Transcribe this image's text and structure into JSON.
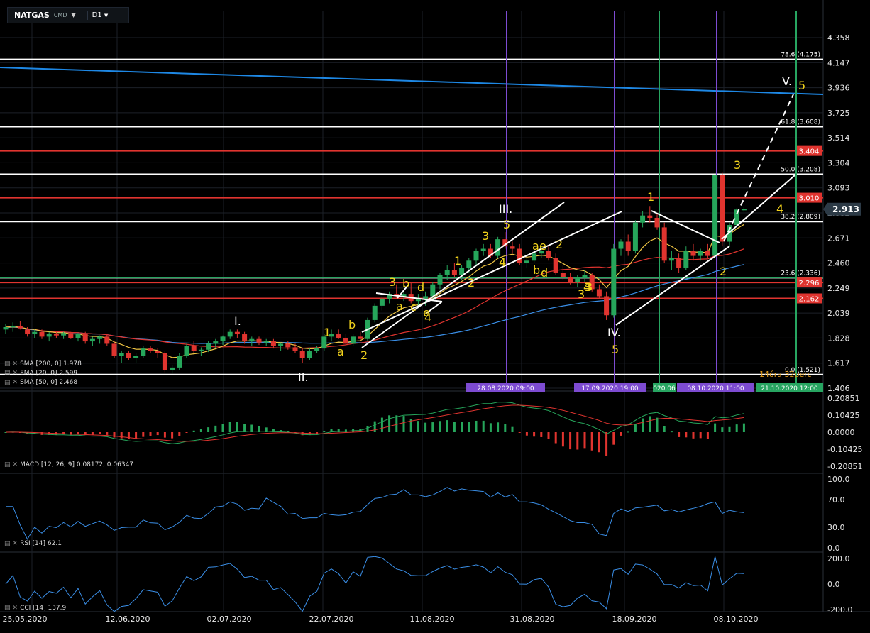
{
  "symbol": {
    "name": "NATGAS",
    "type": "CMD",
    "timeframe": "D1"
  },
  "indicators_main": [
    {
      "label": "SMA [200, 0] 1.978"
    },
    {
      "label": "EMA [20, 0] 2.599"
    },
    {
      "label": "SMA [50, 0] 2.468"
    }
  ],
  "price_axis": [
    "4.358",
    "4.147",
    "3.936",
    "3.725",
    "3.514",
    "3.304",
    "3.093",
    "2.882",
    "2.671",
    "2.460",
    "2.249",
    "2.039",
    "1.828",
    "1.617",
    "1.406"
  ],
  "current_price": "2.913",
  "price_tags": [
    {
      "value": 3.404,
      "label": "3.404"
    },
    {
      "value": 3.01,
      "label": "3.010"
    },
    {
      "value": 2.296,
      "label": "2.296"
    },
    {
      "value": 2.162,
      "label": "2.162"
    }
  ],
  "fib_levels": [
    {
      "value": 4.175,
      "label": "78.6 (4.175)"
    },
    {
      "value": 3.608,
      "label": "61.8 (3.608)"
    },
    {
      "value": 3.208,
      "label": "50.0 (3.208)"
    },
    {
      "value": 2.809,
      "label": "38.2 (2.809)"
    },
    {
      "value": 2.336,
      "label": "23.6 (2.336)"
    },
    {
      "value": 1.521,
      "label": "0.0 (1.521)"
    }
  ],
  "red_levels": [
    3.404,
    3.01,
    2.296,
    2.162
  ],
  "vertical_line_labels": [
    "28.08.2020 09:00",
    "17.09.2020 19:00",
    "020.06",
    "08.10.2020 11:00",
    "21.10.2020 12:00"
  ],
  "countdown": "14óra 32perc",
  "wave_labels": [
    "I.",
    "II.",
    "III.",
    "IV.",
    "V.",
    "1",
    "2",
    "3",
    "4",
    "5",
    "a",
    "b",
    "c",
    "d",
    "e"
  ],
  "date_axis": [
    "25.05.2020",
    "12.06.2020",
    "02.07.2020",
    "22.07.2020",
    "11.08.2020",
    "31.08.2020",
    "18.09.2020",
    "08.10.2020"
  ],
  "macd": {
    "label": "MACD [12, 26, 9] 0.08172, 0.06347",
    "axis": [
      "0.20851",
      "0.10425",
      "0.0000",
      "-0.10425",
      "-0.20851"
    ]
  },
  "rsi": {
    "label": "RSI [14] 62.1",
    "axis": [
      "100.0",
      "70.0",
      "30.0",
      "0.0"
    ]
  },
  "cci": {
    "label": "CCI [14] 137.9",
    "axis": [
      "200.0",
      "0.0",
      "-200.0"
    ]
  },
  "colors": {
    "bull": "#26a65b",
    "bear": "#e0342f",
    "ema": "#f2c744",
    "sma50": "#e0342f",
    "sma200": "#3a8ee6",
    "trend": "#1e88e5",
    "fib": "#ffffff",
    "vline_purple": "#7d4bd1",
    "vline_green": "#27a561",
    "wave": "#f2d31c",
    "rsi": "#3a8ee6"
  },
  "chart_data": {
    "type": "candlestick",
    "title": "NATGAS D1",
    "ylim": [
      1.406,
      4.358
    ],
    "x": [
      "25.05",
      "26.05",
      "27.05",
      "28.05",
      "29.05",
      "01.06",
      "02.06",
      "03.06",
      "04.06",
      "05.06",
      "08.06",
      "09.06",
      "10.06",
      "11.06",
      "12.06",
      "15.06",
      "16.06",
      "17.06",
      "18.06",
      "19.06",
      "22.06",
      "23.06",
      "24.06",
      "25.06",
      "26.06",
      "29.06",
      "30.06",
      "01.07",
      "02.07",
      "03.07",
      "06.07",
      "07.07",
      "08.07",
      "09.07",
      "10.07",
      "13.07",
      "14.07",
      "15.07",
      "16.07",
      "17.07",
      "20.07",
      "21.07",
      "22.07",
      "23.07",
      "24.07",
      "27.07",
      "28.07",
      "29.07",
      "30.07",
      "31.07",
      "03.08",
      "04.08",
      "05.08",
      "06.08",
      "07.08",
      "10.08",
      "11.08",
      "12.08",
      "13.08",
      "14.08",
      "17.08",
      "18.08",
      "19.08",
      "20.08",
      "21.08",
      "24.08",
      "25.08",
      "26.08",
      "27.08",
      "28.08",
      "31.08",
      "01.09",
      "02.09",
      "03.09",
      "04.09",
      "07.09",
      "08.09",
      "09.09",
      "10.09",
      "11.09",
      "14.09",
      "15.09",
      "16.09",
      "17.09",
      "18.09",
      "21.09",
      "22.09",
      "23.09",
      "24.09",
      "25.09",
      "28.09",
      "29.09",
      "30.09",
      "01.10",
      "02.10",
      "05.10",
      "06.10",
      "07.10",
      "08.10",
      "09.10",
      "12.10",
      "13.10",
      "14.10"
    ],
    "ohlc": [
      [
        1.9,
        1.95,
        1.86,
        1.92
      ],
      [
        1.92,
        1.96,
        1.88,
        1.93
      ],
      [
        1.93,
        1.97,
        1.9,
        1.91
      ],
      [
        1.9,
        1.92,
        1.84,
        1.86
      ],
      [
        1.86,
        1.9,
        1.83,
        1.88
      ],
      [
        1.88,
        1.9,
        1.82,
        1.84
      ],
      [
        1.84,
        1.88,
        1.8,
        1.86
      ],
      [
        1.86,
        1.89,
        1.83,
        1.85
      ],
      [
        1.85,
        1.88,
        1.82,
        1.87
      ],
      [
        1.87,
        1.88,
        1.82,
        1.83
      ],
      [
        1.83,
        1.87,
        1.8,
        1.86
      ],
      [
        1.86,
        1.88,
        1.78,
        1.8
      ],
      [
        1.8,
        1.84,
        1.76,
        1.82
      ],
      [
        1.82,
        1.85,
        1.78,
        1.84
      ],
      [
        1.84,
        1.86,
        1.76,
        1.78
      ],
      [
        1.78,
        1.8,
        1.66,
        1.68
      ],
      [
        1.68,
        1.72,
        1.62,
        1.7
      ],
      [
        1.7,
        1.72,
        1.64,
        1.66
      ],
      [
        1.66,
        1.7,
        1.62,
        1.68
      ],
      [
        1.68,
        1.76,
        1.66,
        1.74
      ],
      [
        1.74,
        1.76,
        1.7,
        1.72
      ],
      [
        1.72,
        1.74,
        1.66,
        1.7
      ],
      [
        1.7,
        1.72,
        1.54,
        1.56
      ],
      [
        1.56,
        1.6,
        1.53,
        1.58
      ],
      [
        1.58,
        1.7,
        1.56,
        1.68
      ],
      [
        1.68,
        1.78,
        1.66,
        1.76
      ],
      [
        1.76,
        1.8,
        1.7,
        1.72
      ],
      [
        1.72,
        1.75,
        1.68,
        1.73
      ],
      [
        1.73,
        1.8,
        1.71,
        1.78
      ],
      [
        1.78,
        1.82,
        1.74,
        1.8
      ],
      [
        1.8,
        1.85,
        1.77,
        1.84
      ],
      [
        1.84,
        1.9,
        1.82,
        1.88
      ],
      [
        1.88,
        1.9,
        1.83,
        1.86
      ],
      [
        1.86,
        1.88,
        1.78,
        1.8
      ],
      [
        1.8,
        1.84,
        1.76,
        1.82
      ],
      [
        1.82,
        1.84,
        1.77,
        1.79
      ],
      [
        1.79,
        1.82,
        1.76,
        1.8
      ],
      [
        1.8,
        1.82,
        1.74,
        1.76
      ],
      [
        1.76,
        1.79,
        1.72,
        1.78
      ],
      [
        1.78,
        1.8,
        1.73,
        1.75
      ],
      [
        1.75,
        1.78,
        1.7,
        1.72
      ],
      [
        1.72,
        1.74,
        1.62,
        1.66
      ],
      [
        1.66,
        1.74,
        1.64,
        1.72
      ],
      [
        1.72,
        1.76,
        1.7,
        1.74
      ],
      [
        1.74,
        1.86,
        1.72,
        1.84
      ],
      [
        1.84,
        1.9,
        1.8,
        1.86
      ],
      [
        1.86,
        1.9,
        1.82,
        1.83
      ],
      [
        1.83,
        1.86,
        1.77,
        1.78
      ],
      [
        1.78,
        1.86,
        1.76,
        1.84
      ],
      [
        1.84,
        1.88,
        1.8,
        1.82
      ],
      [
        1.82,
        2.0,
        1.8,
        1.98
      ],
      [
        1.98,
        2.12,
        1.96,
        2.1
      ],
      [
        2.1,
        2.18,
        2.06,
        2.16
      ],
      [
        2.16,
        2.22,
        2.12,
        2.2
      ],
      [
        2.2,
        2.28,
        2.16,
        2.18
      ],
      [
        2.18,
        2.22,
        2.14,
        2.2
      ],
      [
        2.2,
        2.3,
        2.12,
        2.14
      ],
      [
        2.14,
        2.2,
        2.08,
        2.16
      ],
      [
        2.16,
        2.22,
        2.1,
        2.18
      ],
      [
        2.18,
        2.3,
        2.14,
        2.28
      ],
      [
        2.28,
        2.38,
        2.24,
        2.36
      ],
      [
        2.36,
        2.44,
        2.32,
        2.4
      ],
      [
        2.4,
        2.46,
        2.34,
        2.36
      ],
      [
        2.36,
        2.44,
        2.32,
        2.42
      ],
      [
        2.42,
        2.5,
        2.38,
        2.48
      ],
      [
        2.48,
        2.58,
        2.44,
        2.56
      ],
      [
        2.56,
        2.62,
        2.52,
        2.58
      ],
      [
        2.58,
        2.62,
        2.5,
        2.52
      ],
      [
        2.52,
        2.68,
        2.5,
        2.66
      ],
      [
        2.66,
        2.72,
        2.58,
        2.6
      ],
      [
        2.6,
        2.64,
        2.54,
        2.58
      ],
      [
        2.58,
        2.62,
        2.44,
        2.46
      ],
      [
        2.46,
        2.52,
        2.42,
        2.48
      ],
      [
        2.48,
        2.56,
        2.46,
        2.54
      ],
      [
        2.54,
        2.6,
        2.5,
        2.56
      ],
      [
        2.56,
        2.6,
        2.48,
        2.5
      ],
      [
        2.5,
        2.54,
        2.36,
        2.38
      ],
      [
        2.38,
        2.44,
        2.32,
        2.34
      ],
      [
        2.34,
        2.38,
        2.28,
        2.3
      ],
      [
        2.3,
        2.36,
        2.26,
        2.34
      ],
      [
        2.34,
        2.4,
        2.3,
        2.36
      ],
      [
        2.36,
        2.38,
        2.22,
        2.24
      ],
      [
        2.24,
        2.28,
        2.16,
        2.18
      ],
      [
        2.18,
        2.22,
        1.98,
        2.02
      ],
      [
        2.02,
        2.62,
        2.0,
        2.58
      ],
      [
        2.58,
        2.66,
        2.52,
        2.64
      ],
      [
        2.64,
        2.7,
        2.52,
        2.56
      ],
      [
        2.56,
        2.82,
        2.54,
        2.8
      ],
      [
        2.8,
        2.9,
        2.76,
        2.86
      ],
      [
        2.86,
        2.94,
        2.8,
        2.84
      ],
      [
        2.84,
        2.88,
        2.74,
        2.76
      ],
      [
        2.76,
        2.8,
        2.46,
        2.48
      ],
      [
        2.48,
        2.56,
        2.4,
        2.5
      ],
      [
        2.5,
        2.54,
        2.38,
        2.42
      ],
      [
        2.42,
        2.6,
        2.4,
        2.56
      ],
      [
        2.56,
        2.62,
        2.48,
        2.52
      ],
      [
        2.52,
        2.58,
        2.48,
        2.56
      ],
      [
        2.56,
        2.62,
        2.5,
        2.52
      ],
      [
        2.52,
        3.22,
        2.5,
        3.2
      ],
      [
        3.2,
        3.22,
        2.6,
        2.64
      ],
      [
        2.64,
        2.8,
        2.6,
        2.78
      ],
      [
        2.78,
        2.92,
        2.76,
        2.91
      ],
      [
        2.91,
        2.93,
        2.89,
        2.913
      ]
    ]
  }
}
